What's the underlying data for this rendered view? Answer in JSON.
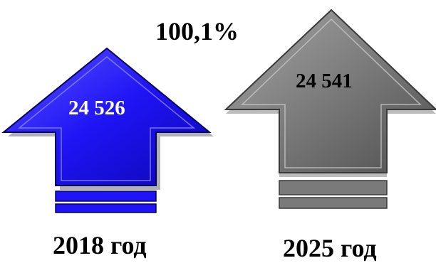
{
  "percent_label": "100,1%",
  "arrows": [
    {
      "value_label": "24 526",
      "year_label": "2018 год",
      "color": "#1f14f5"
    },
    {
      "value_label": "24 541",
      "year_label": "2025 год",
      "color": "#7a7a7a"
    }
  ]
}
